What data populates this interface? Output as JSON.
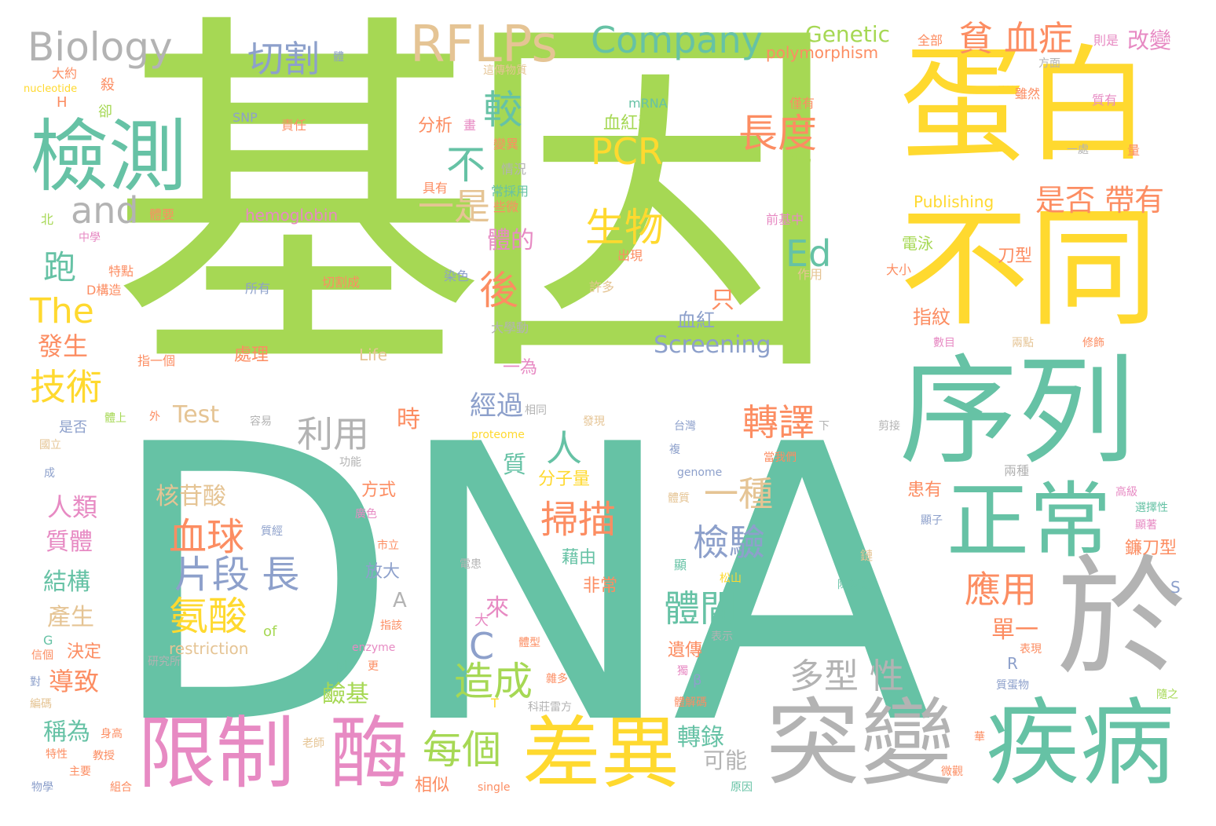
{
  "colors": {
    "green": "#a6d854",
    "teal": "#66c2a5",
    "yellow": "#ffd92f",
    "gray": "#b3b3b3",
    "orange": "#fc8d62",
    "blue": "#8da0cb",
    "pink": "#e78ac3",
    "tan": "#e5c494"
  },
  "words": [
    {
      "text": "基因",
      "color": "green"
    },
    {
      "text": "DNA",
      "color": "teal"
    },
    {
      "text": "蛋白",
      "color": "yellow"
    },
    {
      "text": "不同",
      "color": "yellow"
    },
    {
      "text": "序列",
      "color": "teal"
    },
    {
      "text": "於",
      "color": "gray"
    },
    {
      "text": "檢測",
      "color": "teal"
    },
    {
      "text": "突變",
      "color": "gray"
    },
    {
      "text": "疾病",
      "color": "teal"
    },
    {
      "text": "限制",
      "color": "pink"
    },
    {
      "text": "酶",
      "color": "pink"
    },
    {
      "text": "差異",
      "color": "yellow"
    },
    {
      "text": "正常",
      "color": "teal"
    },
    {
      "text": "RFLPs",
      "color": "tan"
    },
    {
      "text": "Company",
      "color": "teal"
    },
    {
      "text": "Biology",
      "color": "gray"
    },
    {
      "text": "切割",
      "color": "blue"
    },
    {
      "text": "貧 血症",
      "color": "orange"
    },
    {
      "text": "Genetic",
      "color": "green"
    },
    {
      "text": "polymorphism",
      "color": "orange"
    },
    {
      "text": "改變",
      "color": "pink"
    },
    {
      "text": "and",
      "color": "gray"
    },
    {
      "text": "PCR",
      "color": "yellow"
    },
    {
      "text": "長度",
      "color": "orange"
    },
    {
      "text": "生物",
      "color": "yellow"
    },
    {
      "text": "Ed",
      "color": "teal"
    },
    {
      "text": "是否 帶有",
      "color": "orange"
    },
    {
      "text": "一是",
      "color": "tan"
    },
    {
      "text": "不",
      "color": "teal"
    },
    {
      "text": "較",
      "color": "teal"
    },
    {
      "text": "後",
      "color": "orange"
    },
    {
      "text": "The",
      "color": "yellow"
    },
    {
      "text": "跑",
      "color": "teal"
    },
    {
      "text": "技術",
      "color": "yellow"
    },
    {
      "text": "發生",
      "color": "orange"
    },
    {
      "text": "利用",
      "color": "gray"
    },
    {
      "text": "人",
      "color": "teal"
    },
    {
      "text": "轉譯",
      "color": "orange"
    },
    {
      "text": "一種",
      "color": "tan"
    },
    {
      "text": "掃描",
      "color": "orange"
    },
    {
      "text": "血球",
      "color": "orange"
    },
    {
      "text": "片段 長",
      "color": "blue"
    },
    {
      "text": "氨酸",
      "color": "yellow"
    },
    {
      "text": "檢驗",
      "color": "blue"
    },
    {
      "text": "體間",
      "color": "teal"
    },
    {
      "text": "應用",
      "color": "orange"
    },
    {
      "text": "多型 性",
      "color": "gray"
    },
    {
      "text": "造成",
      "color": "green"
    },
    {
      "text": "每個",
      "color": "green"
    },
    {
      "text": "C",
      "color": "blue"
    },
    {
      "text": "Screening",
      "color": "blue"
    },
    {
      "text": "核苷酸",
      "color": "tan"
    },
    {
      "text": "人類",
      "color": "pink"
    },
    {
      "text": "質體",
      "color": "pink"
    },
    {
      "text": "結構",
      "color": "teal"
    },
    {
      "text": "產生",
      "color": "tan"
    },
    {
      "text": "導致",
      "color": "orange"
    },
    {
      "text": "稱為",
      "color": "teal"
    },
    {
      "text": "轉錄",
      "color": "teal"
    },
    {
      "text": "鹼基",
      "color": "green"
    },
    {
      "text": "經過",
      "color": "blue"
    },
    {
      "text": "Test",
      "color": "tan"
    },
    {
      "text": "體的",
      "color": "pink"
    },
    {
      "text": "只",
      "color": "orange"
    },
    {
      "text": "血紅素",
      "color": "green"
    },
    {
      "text": "hemoglobin",
      "color": "pink"
    },
    {
      "text": "Publishing",
      "color": "yellow"
    },
    {
      "text": "Life",
      "color": "tan"
    },
    {
      "text": "restriction",
      "color": "tan"
    },
    {
      "text": "proteome",
      "color": "yellow"
    },
    {
      "text": "genome",
      "color": "blue"
    },
    {
      "text": "enzyme",
      "color": "pink"
    },
    {
      "text": "single",
      "color": "orange"
    },
    {
      "text": "mRNA",
      "color": "teal"
    },
    {
      "text": "SNP",
      "color": "blue"
    },
    {
      "text": "nucleotide",
      "color": "yellow"
    },
    {
      "text": "分析",
      "color": "orange"
    },
    {
      "text": "處理",
      "color": "orange"
    },
    {
      "text": "時",
      "color": "orange"
    },
    {
      "text": "質",
      "color": "teal"
    },
    {
      "text": "來",
      "color": "pink"
    },
    {
      "text": "單一",
      "color": "orange"
    },
    {
      "text": "指紋",
      "color": "orange"
    },
    {
      "text": "血紅",
      "color": "blue"
    },
    {
      "text": "刀型",
      "color": "orange"
    },
    {
      "text": "電泳",
      "color": "green"
    },
    {
      "text": "鐮刀型",
      "color": "orange"
    },
    {
      "text": "患有",
      "color": "orange"
    },
    {
      "text": "分子量",
      "color": "yellow"
    },
    {
      "text": "一為",
      "color": "pink"
    },
    {
      "text": "可能",
      "color": "gray"
    },
    {
      "text": "遺傳",
      "color": "orange"
    },
    {
      "text": "藉由",
      "color": "teal"
    },
    {
      "text": "非常",
      "color": "orange"
    },
    {
      "text": "放大",
      "color": "blue"
    },
    {
      "text": "方式",
      "color": "orange"
    },
    {
      "text": "相似",
      "color": "orange"
    },
    {
      "text": "決定",
      "color": "orange"
    },
    {
      "text": "of",
      "color": "green"
    },
    {
      "text": "A",
      "color": "gray"
    },
    {
      "text": "M",
      "color": "teal"
    },
    {
      "text": "R",
      "color": "blue"
    },
    {
      "text": "S",
      "color": "blue"
    },
    {
      "text": "H",
      "color": "orange"
    },
    {
      "text": "G",
      "color": "teal"
    },
    {
      "text": "β",
      "color": "blue"
    },
    {
      "text": "大",
      "color": "pink"
    },
    {
      "text": "全部",
      "color": "orange"
    },
    {
      "text": "則是",
      "color": "pink"
    },
    {
      "text": "方面",
      "color": "gray"
    },
    {
      "text": "雖然",
      "color": "orange"
    },
    {
      "text": "質有",
      "color": "pink"
    },
    {
      "text": "一處",
      "color": "gray"
    },
    {
      "text": "量",
      "color": "orange"
    },
    {
      "text": "僅有",
      "color": "orange"
    },
    {
      "text": "極為",
      "color": "green"
    },
    {
      "text": "責任",
      "color": "orange"
    },
    {
      "text": "畫",
      "color": "pink"
    },
    {
      "text": "這傳物質",
      "color": "tan"
    },
    {
      "text": "卻",
      "color": "green"
    },
    {
      "text": "殺",
      "color": "orange"
    },
    {
      "text": "大約",
      "color": "orange"
    },
    {
      "text": "體",
      "color": "blue"
    },
    {
      "text": "變異",
      "color": "orange"
    },
    {
      "text": "情況",
      "color": "gray"
    },
    {
      "text": "具有",
      "color": "orange"
    },
    {
      "text": "常採用",
      "color": "teal"
    },
    {
      "text": "些微",
      "color": "orange"
    },
    {
      "text": "體要",
      "color": "orange"
    },
    {
      "text": "北",
      "color": "green"
    },
    {
      "text": "中學",
      "color": "pink"
    },
    {
      "text": "特點",
      "color": "orange"
    },
    {
      "text": "D構造",
      "color": "orange"
    },
    {
      "text": "所有",
      "color": "blue"
    },
    {
      "text": "切割成",
      "color": "orange"
    },
    {
      "text": "染色",
      "color": "blue"
    },
    {
      "text": "許多",
      "color": "tan"
    },
    {
      "text": "出現",
      "color": "orange"
    },
    {
      "text": "前基中",
      "color": "pink"
    },
    {
      "text": "作用",
      "color": "tan"
    },
    {
      "text": "大小",
      "color": "orange"
    },
    {
      "text": "大學動",
      "color": "gray"
    },
    {
      "text": "指一個",
      "color": "orange"
    },
    {
      "text": "數目",
      "color": "pink"
    },
    {
      "text": "兩點",
      "color": "tan"
    },
    {
      "text": "修飾",
      "color": "orange"
    },
    {
      "text": "是否",
      "color": "blue"
    },
    {
      "text": "體上",
      "color": "green"
    },
    {
      "text": "外",
      "color": "orange"
    },
    {
      "text": "容易",
      "color": "gray"
    },
    {
      "text": "相同",
      "color": "gray"
    },
    {
      "text": "發現",
      "color": "tan"
    },
    {
      "text": "台灣",
      "color": "blue"
    },
    {
      "text": "下",
      "color": "gray"
    },
    {
      "text": "剪接",
      "color": "gray"
    },
    {
      "text": "國立",
      "color": "tan"
    },
    {
      "text": "功能",
      "color": "gray"
    },
    {
      "text": "複",
      "color": "blue"
    },
    {
      "text": "當我們",
      "color": "orange"
    },
    {
      "text": "兩種",
      "color": "gray"
    },
    {
      "text": "成",
      "color": "blue"
    },
    {
      "text": "廣色",
      "color": "pink"
    },
    {
      "text": "體質",
      "color": "tan"
    },
    {
      "text": "顯子",
      "color": "blue"
    },
    {
      "text": "高級",
      "color": "pink"
    },
    {
      "text": "選擇性",
      "color": "teal"
    },
    {
      "text": "顯著",
      "color": "pink"
    },
    {
      "text": "質經",
      "color": "blue"
    },
    {
      "text": "市立",
      "color": "orange"
    },
    {
      "text": "電患",
      "color": "gray"
    },
    {
      "text": "鏈",
      "color": "tan"
    },
    {
      "text": "顯",
      "color": "teal"
    },
    {
      "text": "松山",
      "color": "yellow"
    },
    {
      "text": "陳俊宏",
      "color": "teal"
    },
    {
      "text": "指該",
      "color": "orange"
    },
    {
      "text": "表示",
      "color": "gray"
    },
    {
      "text": "體型",
      "color": "orange"
    },
    {
      "text": "表現",
      "color": "orange"
    },
    {
      "text": "研究所",
      "color": "gray"
    },
    {
      "text": "信個",
      "color": "orange"
    },
    {
      "text": "對",
      "color": "blue"
    },
    {
      "text": "更",
      "color": "orange"
    },
    {
      "text": "雜多",
      "color": "orange"
    },
    {
      "text": "獨",
      "color": "pink"
    },
    {
      "text": "質蛋物",
      "color": "blue"
    },
    {
      "text": "隨之",
      "color": "green"
    },
    {
      "text": "編碼",
      "color": "tan"
    },
    {
      "text": "身高",
      "color": "orange"
    },
    {
      "text": "T",
      "color": "yellow"
    },
    {
      "text": "科莊雷方",
      "color": "gray"
    },
    {
      "text": "體解碼",
      "color": "orange"
    },
    {
      "text": "華",
      "color": "orange"
    },
    {
      "text": "老師",
      "color": "tan"
    },
    {
      "text": "特性",
      "color": "orange"
    },
    {
      "text": "教授",
      "color": "orange"
    },
    {
      "text": "組合",
      "color": "orange"
    },
    {
      "text": "原因",
      "color": "teal"
    },
    {
      "text": "微觀",
      "color": "orange"
    },
    {
      "text": "主要",
      "color": "orange"
    },
    {
      "text": "物學",
      "color": "blue"
    }
  ]
}
